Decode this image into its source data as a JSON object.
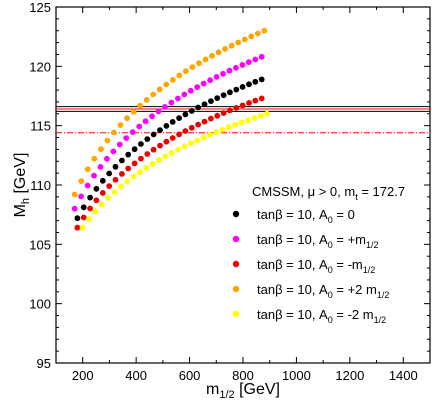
{
  "chart_data": {
    "type": "scatter",
    "xlabel": "m",
    "xlabel_sub": "1/2",
    "xlabel_unit": " [GeV]",
    "ylabel": "M",
    "ylabel_sub": "h",
    "ylabel_unit": " [GeV]",
    "xlim": [
      100,
      1500
    ],
    "ylim": [
      95,
      125
    ],
    "x_ticks": [
      200,
      400,
      600,
      800,
      1000,
      1200,
      1400
    ],
    "y_ticks": [
      95,
      100,
      105,
      110,
      115,
      120,
      125
    ],
    "x_tick_labels": [
      "200",
      "400",
      "600",
      "800",
      "1000",
      "1200",
      "1400"
    ],
    "y_tick_labels": [
      "95",
      "100",
      "105",
      "110",
      "115",
      "120",
      "125"
    ],
    "annotation": {
      "prefix": "CMSSM, μ > 0, m",
      "sub": "t",
      "suffix": " = 172.7"
    },
    "legend_position": "lower-right",
    "reference_lines": [
      {
        "y": 116.6,
        "color": "#000000",
        "style": "solid"
      },
      {
        "y": 116.4,
        "color": "#ff0000",
        "style": "solid"
      },
      {
        "y": 116.2,
        "color": "#000000",
        "style": "solid"
      },
      {
        "y": 114.4,
        "color": "#ff0000",
        "style": "dash-dot"
      }
    ],
    "series": [
      {
        "label_pre": "tanβ = 10, A",
        "label_sub": "0",
        "label_post": " = 0",
        "label_post_sub": "",
        "color": "#000000",
        "x_start": 180,
        "x_end": 870,
        "y_start": 107.2,
        "y_end": 118.9,
        "n_points": 30
      },
      {
        "label_pre": "tanβ = 10, A",
        "label_sub": "0",
        "label_post": " = +m",
        "label_post_sub": "1/2",
        "color": "#ff00ff",
        "x_start": 170,
        "x_end": 870,
        "y_start": 108.0,
        "y_end": 120.8,
        "n_points": 30
      },
      {
        "label_pre": "tanβ = 10, A",
        "label_sub": "0",
        "label_post": " = -m",
        "label_post_sub": "1/2",
        "color": "#ee0000",
        "x_start": 180,
        "x_end": 870,
        "y_start": 106.4,
        "y_end": 117.3,
        "n_points": 30
      },
      {
        "label_pre": "tanβ = 10, A",
        "label_sub": "0",
        "label_post": " = +2 m",
        "label_post_sub": "1/2",
        "color": "#ffa500",
        "x_start": 170,
        "x_end": 880,
        "y_start": 109.2,
        "y_end": 123.0,
        "n_points": 30
      },
      {
        "label_pre": "tanβ = 10, A",
        "label_sub": "0",
        "label_post": " = -2 m",
        "label_post_sub": "1/2",
        "color": "#ffff00",
        "x_start": 200,
        "x_end": 890,
        "y_start": 106.4,
        "y_end": 116.0,
        "n_points": 30
      }
    ]
  }
}
